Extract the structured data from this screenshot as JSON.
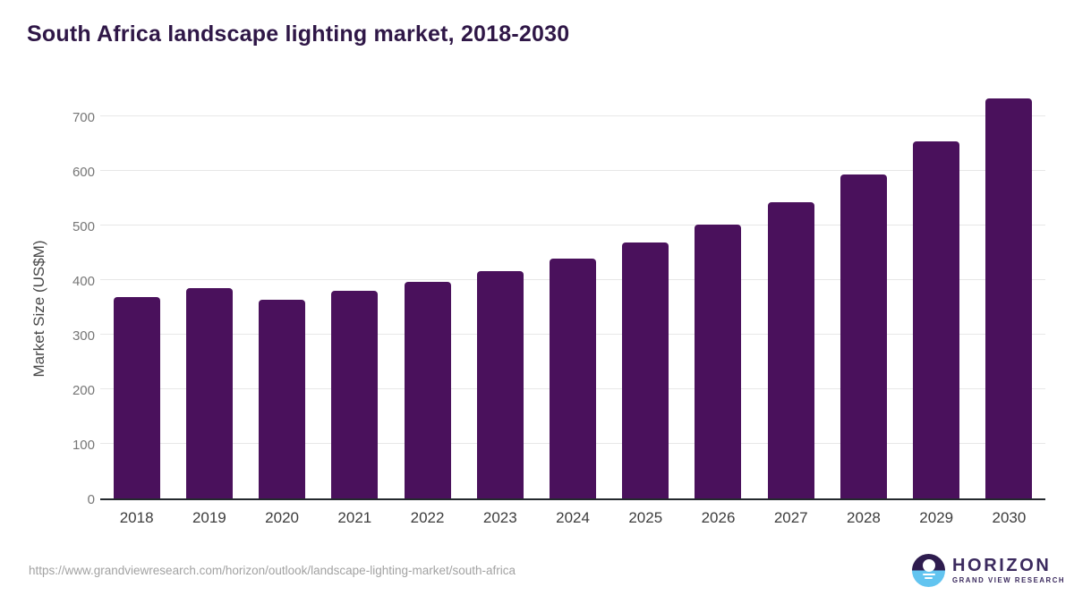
{
  "chart_data": {
    "type": "bar",
    "title": "South Africa landscape lighting market, 2018-2030",
    "xlabel": "",
    "ylabel": "Market Size (US$M)",
    "categories": [
      "2018",
      "2019",
      "2020",
      "2021",
      "2022",
      "2023",
      "2024",
      "2025",
      "2026",
      "2027",
      "2028",
      "2029",
      "2030"
    ],
    "values": [
      369,
      386,
      364,
      380,
      397,
      417,
      440,
      469,
      502,
      543,
      593,
      654,
      732
    ],
    "yticks": [
      0,
      100,
      200,
      300,
      400,
      500,
      600,
      700
    ],
    "ylim": [
      0,
      700
    ],
    "grid": true,
    "legend": "none",
    "bar_color": "#4a115c"
  },
  "footer": {
    "source_url": "https://www.grandviewresearch.com/horizon/outlook/landscape-lighting-market/south-africa",
    "logo": {
      "title": "HORIZON",
      "subtitle": "GRAND VIEW RESEARCH",
      "icon": "horizon-sun-over-water-icon"
    }
  },
  "colors": {
    "title_text": "#2f1747",
    "bar": "#4a115c",
    "axis_line": "#24292e",
    "gridline": "#e7e7e7",
    "y_tick_text": "#767676",
    "x_tick_text": "#3d3d3d",
    "url_text": "#a2a2a2",
    "logo_dark_purple": "#2e1c4e",
    "logo_light_blue": "#62c4f0"
  }
}
